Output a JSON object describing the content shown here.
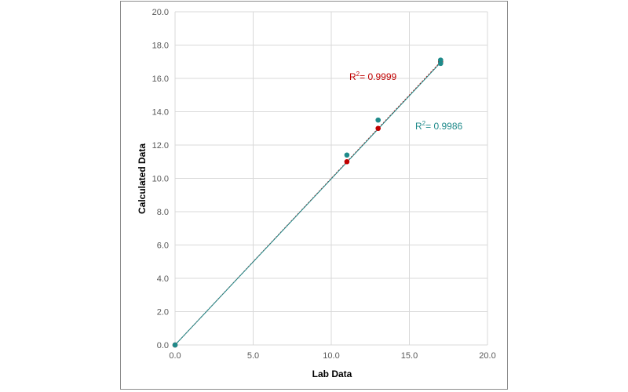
{
  "chart_data": {
    "type": "scatter",
    "title": "",
    "xlabel": "Lab Data",
    "ylabel": "Calculated Data",
    "xlim": [
      0,
      20
    ],
    "ylim": [
      0,
      20
    ],
    "x_ticks": [
      "0.0",
      "5.0",
      "10.0",
      "15.0",
      "20.0"
    ],
    "y_ticks": [
      "0.0",
      "2.0",
      "4.0",
      "6.0",
      "8.0",
      "10.0",
      "12.0",
      "14.0",
      "16.0",
      "18.0",
      "20.0"
    ],
    "grid": true,
    "legend": "none",
    "series": [
      {
        "color": "#c00000",
        "points": [
          [
            0,
            0
          ],
          [
            11,
            11.0
          ],
          [
            13,
            13.0
          ],
          [
            17,
            17.0
          ]
        ],
        "trendline": {
          "x": [
            0,
            17
          ],
          "y": [
            0,
            17
          ],
          "style": "dotted"
        },
        "r2_text": "= 0.9999"
      },
      {
        "color": "#1f8a8a",
        "points": [
          [
            0,
            0
          ],
          [
            11,
            11.4
          ],
          [
            13,
            13.5
          ],
          [
            17,
            16.9
          ],
          [
            17,
            17.1
          ]
        ],
        "trendline": {
          "x": [
            0,
            17
          ],
          "y": [
            0,
            16.95
          ],
          "style": "solid"
        },
        "r2_text": "= 0.9986"
      }
    ]
  }
}
